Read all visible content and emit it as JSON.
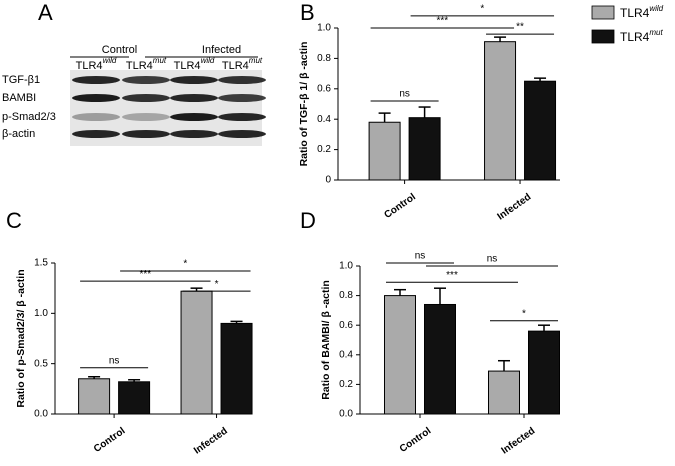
{
  "panel_a": {
    "letter": "A",
    "groups": [
      "Control",
      "Infected"
    ],
    "lanes": [
      {
        "name": "TLR4",
        "superscript": "wild"
      },
      {
        "name": "TLR4",
        "superscript": "mut"
      },
      {
        "name": "TLR4",
        "superscript": "wild"
      },
      {
        "name": "TLR4",
        "superscript": "mut"
      }
    ],
    "rows": [
      "TGF-β1",
      "BAMBI",
      "p-Smad2/3",
      "β-actin"
    ]
  },
  "legend": [
    {
      "name": "TLR4",
      "superscript": "wild",
      "color": "#aaaaaa"
    },
    {
      "name": "TLR4",
      "superscript": "mut",
      "color": "#111111"
    }
  ],
  "chart_data": [
    {
      "type": "bar",
      "panel": "B",
      "ylabel": "Ratio of TGF-β 1/ β -actin",
      "categories": [
        "Control",
        "Infected"
      ],
      "series": [
        {
          "values": [
            0.38,
            0.91
          ],
          "errors": [
            0.06,
            0.03
          ]
        },
        {
          "values": [
            0.41,
            0.65
          ],
          "errors": [
            0.07,
            0.02
          ]
        }
      ],
      "ylim": [
        0,
        1
      ],
      "yticks": [
        0,
        0.2,
        0.4,
        0.6,
        0.8,
        {
          "value": 1,
          "label": "1.0"
        }
      ],
      "annotations": [
        "ns",
        "***",
        "*",
        "**"
      ]
    },
    {
      "type": "bar",
      "panel": "C",
      "ylabel": "Ratio of p-Smad2/3/ β -actin",
      "categories": [
        "Control",
        "Infected"
      ],
      "series": [
        {
          "values": [
            0.35,
            1.22
          ],
          "errors": [
            0.02,
            0.03
          ]
        },
        {
          "values": [
            0.32,
            0.9
          ],
          "errors": [
            0.02,
            0.02
          ]
        }
      ],
      "ylim": [
        0,
        1.5
      ],
      "yticks": [
        {
          "value": 0,
          "label": "0.0"
        },
        0.5,
        {
          "value": 1,
          "label": "1.0"
        },
        1.5
      ],
      "annotations": [
        "ns",
        "***",
        "*",
        "*"
      ]
    },
    {
      "type": "bar",
      "panel": "D",
      "ylabel": "Ratio of BAMBI/ β -actin",
      "categories": [
        "Control",
        "Infected"
      ],
      "series": [
        {
          "values": [
            0.8,
            0.29
          ],
          "errors": [
            0.04,
            0.07
          ]
        },
        {
          "values": [
            0.74,
            0.56
          ],
          "errors": [
            0.11,
            0.04
          ]
        }
      ],
      "ylim": [
        0,
        1
      ],
      "yticks": [
        {
          "value": 0,
          "label": "0.0"
        },
        0.2,
        0.4,
        0.6,
        0.8,
        {
          "value": 1,
          "label": "1.0"
        }
      ],
      "annotations": [
        "ns",
        "ns",
        "***",
        "*"
      ]
    }
  ]
}
